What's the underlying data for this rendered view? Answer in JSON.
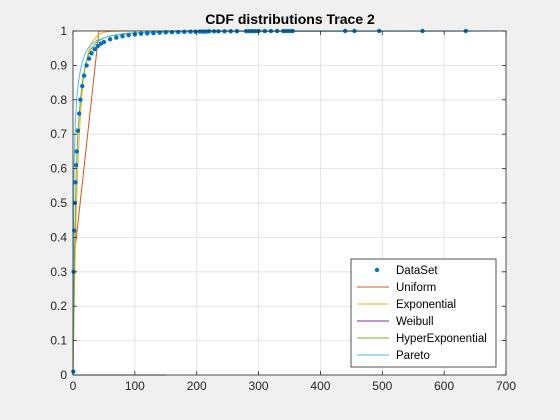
{
  "chart_data": {
    "type": "line",
    "title": "CDF distributions Trace 2",
    "xlabel": "",
    "ylabel": "",
    "xlim": [
      0,
      700
    ],
    "ylim": [
      0,
      1
    ],
    "xticks": [
      0,
      100,
      200,
      300,
      400,
      500,
      600,
      700
    ],
    "yticks": [
      0,
      0.1,
      0.2,
      0.3,
      0.4,
      0.5,
      0.6,
      0.7,
      0.8,
      0.9,
      1
    ],
    "grid": true,
    "legend_position": "bottom-right",
    "series": [
      {
        "name": "DataSet",
        "kind": "markers",
        "color": "#0072BD",
        "x": [
          0.5,
          1,
          2,
          3,
          4,
          5,
          6,
          8,
          10,
          12,
          15,
          18,
          22,
          26,
          30,
          35,
          40,
          45,
          50,
          60,
          70,
          80,
          90,
          100,
          110,
          120,
          130,
          140,
          150,
          160,
          170,
          180,
          190,
          198,
          205,
          210,
          215,
          220,
          228,
          235,
          245,
          255,
          265,
          280,
          285,
          290,
          295,
          300,
          310,
          320,
          330,
          340,
          345,
          350,
          355,
          440,
          455,
          495,
          565,
          635
        ],
        "y": [
          0.01,
          0.3,
          0.42,
          0.5,
          0.56,
          0.61,
          0.65,
          0.71,
          0.76,
          0.8,
          0.84,
          0.87,
          0.9,
          0.92,
          0.935,
          0.947,
          0.956,
          0.963,
          0.968,
          0.976,
          0.981,
          0.985,
          0.988,
          0.99,
          0.992,
          0.993,
          0.994,
          0.995,
          0.996,
          0.9965,
          0.997,
          0.9975,
          0.998,
          0.998,
          0.9985,
          0.9985,
          0.9985,
          0.999,
          0.999,
          0.999,
          0.9992,
          0.9993,
          0.9994,
          0.9995,
          0.9995,
          0.9996,
          0.9996,
          0.9997,
          0.9997,
          0.9998,
          0.9998,
          0.9998,
          0.9999,
          0.9999,
          0.9999,
          1,
          1,
          1,
          1,
          1
        ]
      },
      {
        "name": "Uniform",
        "kind": "line",
        "color": "#D95319",
        "x": [
          0,
          3,
          42,
          50,
          700
        ],
        "y": [
          0,
          0.36,
          1,
          1,
          1
        ]
      },
      {
        "name": "Exponential",
        "kind": "line",
        "color": "#EDB120",
        "x": [
          0,
          2,
          5,
          8,
          12,
          16,
          20,
          25,
          30,
          40,
          50,
          60,
          80,
          700
        ],
        "y": [
          0,
          0.22,
          0.46,
          0.62,
          0.76,
          0.85,
          0.9,
          0.94,
          0.965,
          0.988,
          0.996,
          0.999,
          1,
          1
        ]
      },
      {
        "name": "Weibull",
        "kind": "line",
        "color": "#7E2F8E",
        "x": [
          0,
          150
        ],
        "y": [
          0,
          0
        ]
      },
      {
        "name": "HyperExponential",
        "kind": "line",
        "color": "#77AC30",
        "x": [
          0,
          2,
          5,
          8,
          12,
          16,
          20,
          25,
          30,
          40,
          50,
          60,
          80,
          100,
          150,
          200,
          700
        ],
        "y": [
          0,
          0.32,
          0.58,
          0.71,
          0.8,
          0.86,
          0.9,
          0.93,
          0.95,
          0.97,
          0.98,
          0.986,
          0.992,
          0.995,
          0.998,
          0.999,
          1
        ]
      },
      {
        "name": "Pareto",
        "kind": "line",
        "color": "#4DBEEE",
        "x": [
          0,
          1,
          2,
          4,
          6,
          8,
          10,
          12,
          15,
          20,
          25,
          30,
          40,
          60,
          100,
          200,
          700
        ],
        "y": [
          0,
          0.5,
          0.62,
          0.74,
          0.8,
          0.84,
          0.865,
          0.885,
          0.91,
          0.935,
          0.952,
          0.962,
          0.974,
          0.986,
          0.994,
          0.998,
          1
        ]
      }
    ]
  }
}
